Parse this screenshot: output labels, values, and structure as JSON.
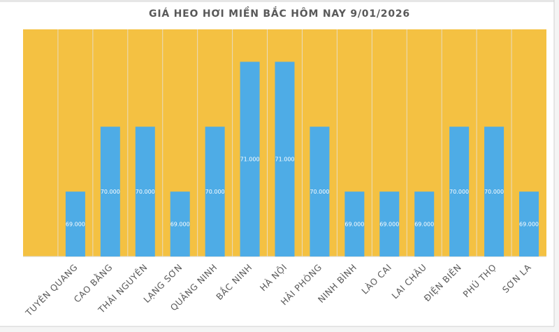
{
  "chart_data": {
    "type": "bar",
    "title": "GIÁ HEO HƠI MIỀN BẮC HÔM NAY 9/01/2026",
    "xlabel": "",
    "ylabel": "",
    "categories": [
      "",
      "TUYÊN QUANG",
      "CAO BẰNG",
      "THÁI NGUYÊN",
      "LẠNG SƠN",
      "QUẢNG NINH",
      "BẮC NINH",
      "HÀ NỘI",
      "HẢI PHÒNG",
      "NINH BÌNH",
      "LÀO CAI",
      "LAI CHÂU",
      "ĐIỆN BIÊN",
      "PHÚ THỌ",
      "SƠN LA"
    ],
    "values": [
      null,
      69,
      70,
      70,
      69,
      70,
      71,
      71,
      70,
      69,
      69,
      69,
      70,
      70,
      69
    ],
    "data_labels": [
      "",
      "69.000",
      "70.000",
      "70.000",
      "69.000",
      "70.000",
      "71.000",
      "71.000",
      "70.000",
      "69.000",
      "69.000",
      "69.000",
      "70.000",
      "70.000",
      "69.000"
    ],
    "ylim": [
      68,
      71.5
    ],
    "grid": false,
    "legend": "none",
    "colors": {
      "plot_background": "#F4C142",
      "bar": "#4EACE6",
      "divider": "#E8DCC0",
      "text": "#595959"
    }
  }
}
